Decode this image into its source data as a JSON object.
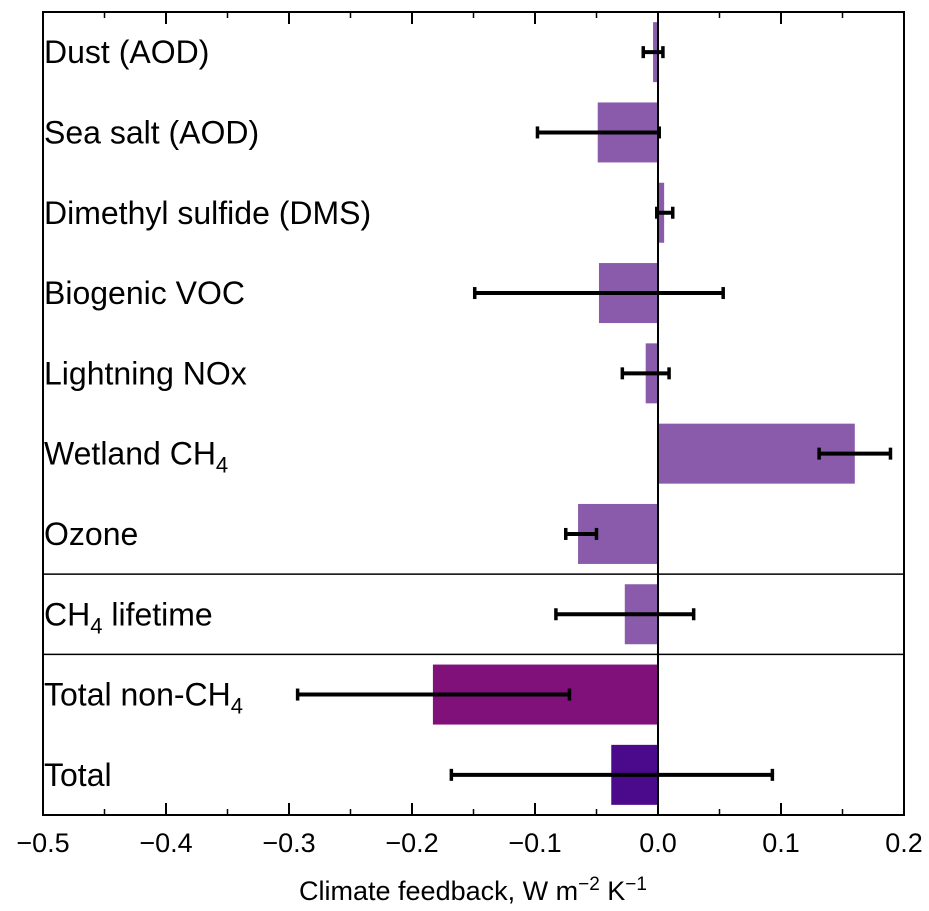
{
  "chart_data": {
    "type": "bar",
    "orientation": "horizontal",
    "xlabel": {
      "base": "Climate feedback, W m",
      "sup1": "−2",
      "mid": " K",
      "sup2": "−1"
    },
    "xlim": [
      -0.5,
      0.2
    ],
    "xticks": [
      -0.5,
      -0.4,
      -0.3,
      -0.2,
      -0.1,
      0.0,
      0.1,
      0.2
    ],
    "xtick_labels": [
      "−0.5",
      "−0.4",
      "−0.3",
      "−0.2",
      "−0.1",
      "0.0",
      "0.1",
      "0.2"
    ],
    "separators_after_rows": [
      7,
      8
    ],
    "rows": [
      {
        "label": "Dust (AOD)",
        "value": -0.004,
        "err_low": -0.012,
        "err_high": 0.004,
        "color": "#8a5aab"
      },
      {
        "label": "Sea salt (AOD)",
        "value": -0.049,
        "err_low": -0.098,
        "err_high": 0.001,
        "color": "#8a5aab"
      },
      {
        "label": "Dimethyl sulfide (DMS)",
        "value": 0.005,
        "err_low": -0.001,
        "err_high": 0.012,
        "color": "#8a5aab"
      },
      {
        "label": "Biogenic VOC",
        "value": -0.048,
        "err_low": -0.149,
        "err_high": 0.053,
        "color": "#8a5aab"
      },
      {
        "label": "Lightning NOx",
        "value": -0.01,
        "err_low": -0.029,
        "err_high": 0.009,
        "color": "#8a5aab"
      },
      {
        "label": "Wetland CH",
        "sub": "4",
        "value": 0.16,
        "err_low": 0.131,
        "err_high": 0.189,
        "color": "#8a5aab"
      },
      {
        "label": "Ozone",
        "value": -0.065,
        "err_low": -0.075,
        "err_high": -0.05,
        "color": "#8a5aab"
      },
      {
        "label": "CH",
        "sub": "4",
        "label_suffix": " lifetime",
        "value": -0.027,
        "err_low": -0.083,
        "err_high": 0.029,
        "color": "#8a5aab"
      },
      {
        "label": "Total non-CH",
        "sub": "4",
        "value": -0.183,
        "err_low": -0.293,
        "err_high": -0.072,
        "color": "#80107a"
      },
      {
        "label": "Total",
        "value": -0.038,
        "err_low": -0.168,
        "err_high": 0.093,
        "color": "#4b0a8c"
      }
    ]
  }
}
